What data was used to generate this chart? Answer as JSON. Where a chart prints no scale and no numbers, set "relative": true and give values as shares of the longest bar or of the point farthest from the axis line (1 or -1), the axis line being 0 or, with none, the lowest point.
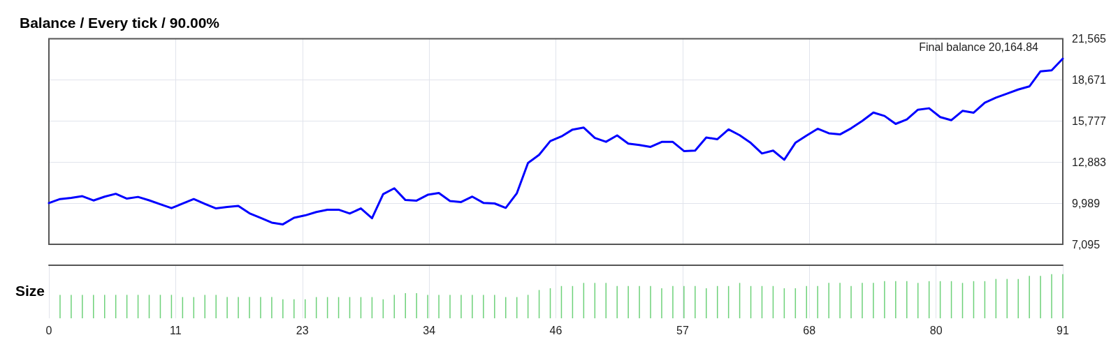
{
  "chart_data": [
    {
      "type": "line",
      "title": "Balance / Every tick / 90.00%",
      "x": [
        0,
        1,
        2,
        3,
        4,
        5,
        6,
        7,
        8,
        9,
        10,
        11,
        12,
        13,
        14,
        15,
        16,
        17,
        18,
        19,
        20,
        21,
        22,
        23,
        24,
        25,
        26,
        27,
        28,
        29,
        30,
        31,
        32,
        33,
        34,
        35,
        36,
        37,
        38,
        39,
        40,
        41,
        42,
        43,
        44,
        45,
        46,
        47,
        48,
        49,
        50,
        51,
        52,
        53,
        54,
        55,
        56,
        57,
        58,
        59,
        60,
        61,
        62,
        63,
        64,
        65,
        66,
        67,
        68,
        69,
        70,
        71,
        72,
        73,
        74,
        75,
        76,
        77,
        78,
        79,
        80,
        81,
        82,
        83,
        84,
        85,
        86,
        87,
        88,
        89,
        90,
        91
      ],
      "values": [
        10000,
        10280,
        10360,
        10480,
        10180,
        10450,
        10650,
        10310,
        10430,
        10190,
        9910,
        9640,
        9960,
        10280,
        9940,
        9620,
        9720,
        9800,
        9280,
        8960,
        8620,
        8500,
        8960,
        9130,
        9370,
        9530,
        9530,
        9260,
        9620,
        8930,
        10630,
        11040,
        10210,
        10170,
        10580,
        10710,
        10140,
        10070,
        10450,
        10010,
        9970,
        9660,
        10690,
        12820,
        13400,
        14360,
        14690,
        15170,
        15310,
        14580,
        14310,
        14760,
        14180,
        14080,
        13950,
        14300,
        14300,
        13660,
        13690,
        14610,
        14490,
        15180,
        14770,
        14230,
        13490,
        13690,
        13050,
        14240,
        14750,
        15230,
        14910,
        14830,
        15260,
        15780,
        16370,
        16130,
        15570,
        15880,
        16570,
        16670,
        16050,
        15830,
        16490,
        16360,
        17060,
        17420,
        17700,
        17990,
        18210,
        19270,
        19340,
        20164.84
      ],
      "color": "#0000ff",
      "xlim": [
        0,
        91
      ],
      "xticks": [
        {
          "value": 11.375,
          "label": null
        },
        {
          "value": 22.75,
          "label": null
        },
        {
          "value": 34.125,
          "label": null
        },
        {
          "value": 45.5,
          "label": null
        },
        {
          "value": 56.875,
          "label": null
        },
        {
          "value": 68.25,
          "label": null
        },
        {
          "value": 79.625,
          "label": null
        }
      ],
      "ylim": [
        7095,
        21565
      ],
      "yticks": [
        {
          "value": 7095,
          "label": "7,095"
        },
        {
          "value": 9989,
          "label": "9,989"
        },
        {
          "value": 12883,
          "label": "12,883"
        },
        {
          "value": 15777,
          "label": "15,777"
        },
        {
          "value": 18671,
          "label": "18,671"
        },
        {
          "value": 21565,
          "label": "21,565"
        }
      ],
      "grid": true,
      "tick_labels": "y",
      "annotations": [
        "Final balance 20,164.84"
      ]
    },
    {
      "type": "bar",
      "ylabel": "Size",
      "relative": true,
      "x": [
        1,
        2,
        3,
        4,
        5,
        6,
        7,
        8,
        9,
        10,
        11,
        12,
        13,
        14,
        15,
        16,
        17,
        18,
        19,
        20,
        21,
        22,
        23,
        24,
        25,
        26,
        27,
        28,
        29,
        30,
        31,
        32,
        33,
        34,
        35,
        36,
        37,
        38,
        39,
        40,
        41,
        42,
        43,
        44,
        45,
        46,
        47,
        48,
        49,
        50,
        51,
        52,
        53,
        54,
        55,
        56,
        57,
        58,
        59,
        60,
        61,
        62,
        63,
        64,
        65,
        66,
        67,
        68,
        69,
        70,
        71,
        72,
        73,
        74,
        75,
        76,
        77,
        78,
        79,
        80,
        81,
        82,
        83,
        84,
        85,
        86,
        87,
        88,
        89,
        90,
        91
      ],
      "values": [
        0.53,
        0.53,
        0.53,
        0.53,
        0.53,
        0.53,
        0.53,
        0.53,
        0.53,
        0.53,
        0.53,
        0.48,
        0.48,
        0.53,
        0.53,
        0.48,
        0.48,
        0.48,
        0.48,
        0.48,
        0.43,
        0.43,
        0.43,
        0.48,
        0.48,
        0.48,
        0.48,
        0.48,
        0.48,
        0.43,
        0.53,
        0.57,
        0.57,
        0.53,
        0.53,
        0.53,
        0.53,
        0.53,
        0.53,
        0.53,
        0.48,
        0.48,
        0.53,
        0.64,
        0.68,
        0.73,
        0.73,
        0.8,
        0.8,
        0.8,
        0.73,
        0.73,
        0.73,
        0.73,
        0.68,
        0.73,
        0.73,
        0.73,
        0.68,
        0.73,
        0.73,
        0.8,
        0.73,
        0.73,
        0.73,
        0.68,
        0.68,
        0.73,
        0.73,
        0.8,
        0.8,
        0.73,
        0.8,
        0.8,
        0.84,
        0.84,
        0.84,
        0.8,
        0.84,
        0.84,
        0.84,
        0.8,
        0.84,
        0.84,
        0.89,
        0.89,
        0.89,
        0.96,
        0.96,
        1,
        1
      ],
      "color": "#6dd179",
      "xlim": [
        0,
        91
      ],
      "xticks": [
        0,
        {
          "value": 11.375,
          "label": "11"
        },
        {
          "value": 22.75,
          "label": "23"
        },
        {
          "value": 34.125,
          "label": "34"
        },
        {
          "value": 45.5,
          "label": "46"
        },
        {
          "value": 56.875,
          "label": "57"
        },
        {
          "value": 68.25,
          "label": "68"
        },
        {
          "value": 79.625,
          "label": "80"
        },
        91
      ],
      "grid": "x",
      "tick_labels": "x"
    }
  ]
}
